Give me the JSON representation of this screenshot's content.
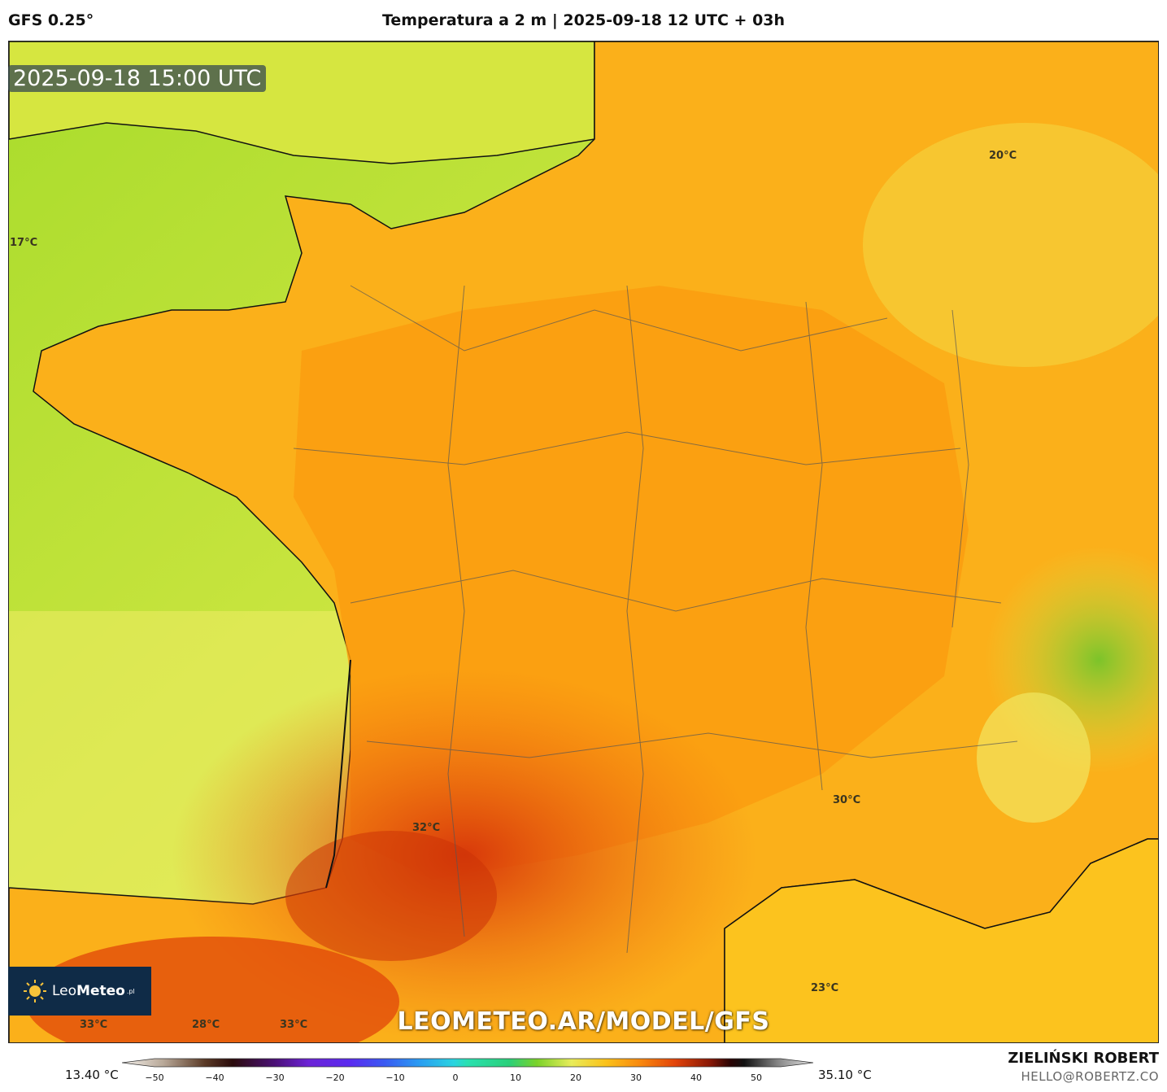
{
  "header": {
    "model": "GFS 0.25°",
    "title": "Temperatura a 2 m | 2025-09-18 12 UTC + 03h"
  },
  "map": {
    "timestamp": "2025-09-18 15:00 UTC",
    "labels": [
      {
        "text": "17°C"
      },
      {
        "text": "20°C"
      },
      {
        "text": "30°C"
      },
      {
        "text": "32°C"
      },
      {
        "text": "23°C"
      },
      {
        "text": "33°C"
      },
      {
        "text": "28°C"
      },
      {
        "text": "33°C"
      }
    ],
    "watermark": "LEOMETEO.AR/MODEL/GFS",
    "logo": {
      "light": "Leo",
      "bold": "Meteo",
      "sup": ".pl"
    }
  },
  "colorbar": {
    "min_label": "13.40 °C",
    "max_label": "35.10 °C",
    "ticks": [
      "−50",
      "−40",
      "−30",
      "−20",
      "−10",
      "0",
      "10",
      "20",
      "30",
      "40",
      "50"
    ]
  },
  "footer": {
    "author": "ZIELIŃSKI ROBERT",
    "email": "HELLO@ROBERTZ.CO"
  },
  "palette": {
    "sea_green": "#b7e02e",
    "sea_yellow": "#eeee6a",
    "land_orange": "#fba40f",
    "hot_red": "#e8480a",
    "alps_green": "#8ccb2e"
  }
}
